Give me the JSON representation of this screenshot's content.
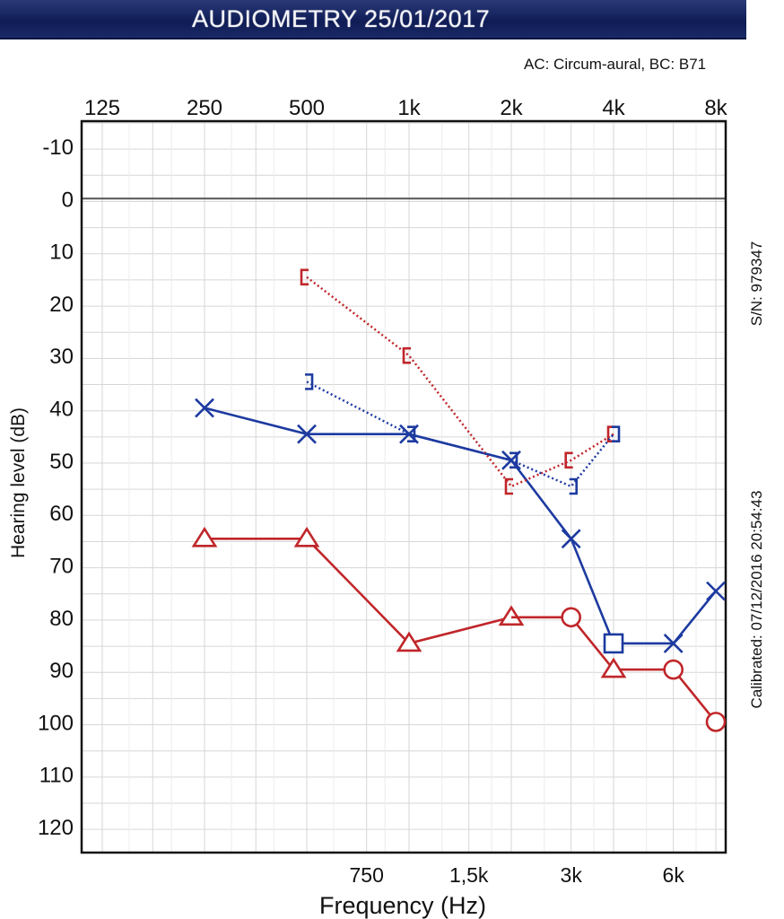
{
  "header": {
    "title": "AUDIOMETRY 25/01/2017",
    "transducers": "AC: Circum-aural, BC: B71"
  },
  "side_labels": {
    "serial": "S/N: 979347",
    "calibrated": "Calibrated: 07/12/2016 20:54:43"
  },
  "chart_data": {
    "type": "line",
    "title": "AUDIOMETRY 25/01/2017",
    "xlabel": "Frequency (Hz)",
    "ylabel": "Hearing level (dB)",
    "x_scale": "log",
    "xlim": [
      125,
      8000
    ],
    "ylim": [
      -10,
      120
    ],
    "y_inverted": true,
    "grid": true,
    "top_tick_labels": [
      {
        "f": 125,
        "label": "125"
      },
      {
        "f": 250,
        "label": "250"
      },
      {
        "f": 500,
        "label": "500"
      },
      {
        "f": 1000,
        "label": "1k"
      },
      {
        "f": 2000,
        "label": "2k"
      },
      {
        "f": 4000,
        "label": "4k"
      },
      {
        "f": 8000,
        "label": "8k"
      }
    ],
    "bottom_tick_labels": [
      {
        "f": 750,
        "label": "750"
      },
      {
        "f": 1500,
        "label": "1,5k"
      },
      {
        "f": 3000,
        "label": "3k"
      },
      {
        "f": 6000,
        "label": "6k"
      }
    ],
    "y_ticks": [
      -10,
      0,
      10,
      20,
      30,
      40,
      50,
      60,
      70,
      80,
      90,
      100,
      110,
      120
    ],
    "series": [
      {
        "name": "Right AC",
        "color": "#c0262a",
        "marker": "triangle",
        "dash": "solid",
        "points": [
          [
            250,
            65
          ],
          [
            500,
            65
          ],
          [
            1000,
            85
          ],
          [
            2000,
            80
          ]
        ]
      },
      {
        "name": "Right AC",
        "color": "#c0262a",
        "marker": "circle",
        "dash": "solid",
        "points": [
          [
            2000,
            80
          ],
          [
            3000,
            80
          ],
          [
            4000,
            90
          ],
          [
            6000,
            90
          ],
          [
            8000,
            100
          ]
        ]
      },
      {
        "name": "Right AC markers",
        "color": "#c0262a",
        "marker": "triangle",
        "dash": "none",
        "points": [
          [
            4000,
            90
          ]
        ]
      },
      {
        "name": "Left AC",
        "color": "#1c3aa0",
        "marker": "x",
        "dash": "solid",
        "points": [
          [
            250,
            40
          ],
          [
            500,
            45
          ],
          [
            1000,
            45
          ],
          [
            2000,
            50
          ],
          [
            3000,
            65
          ],
          [
            4000,
            85
          ],
          [
            6000,
            85
          ],
          [
            8000,
            75
          ]
        ]
      },
      {
        "name": "Left AC markers",
        "color": "#1c3aa0",
        "marker": "square",
        "dash": "none",
        "points": [
          [
            4000,
            85
          ]
        ]
      },
      {
        "name": "Right BC",
        "color": "#c0262a",
        "marker": "bracket-left",
        "dash": "dotted",
        "points": [
          [
            500,
            15
          ],
          [
            1000,
            30
          ],
          [
            2000,
            55
          ],
          [
            3000,
            50
          ],
          [
            4000,
            45
          ]
        ]
      },
      {
        "name": "Left BC",
        "color": "#1c3aa0",
        "marker": "bracket-right",
        "dash": "dotted",
        "points": [
          [
            500,
            35
          ],
          [
            1000,
            45
          ],
          [
            2000,
            50
          ],
          [
            3000,
            55
          ],
          [
            4000,
            45
          ]
        ]
      }
    ]
  }
}
